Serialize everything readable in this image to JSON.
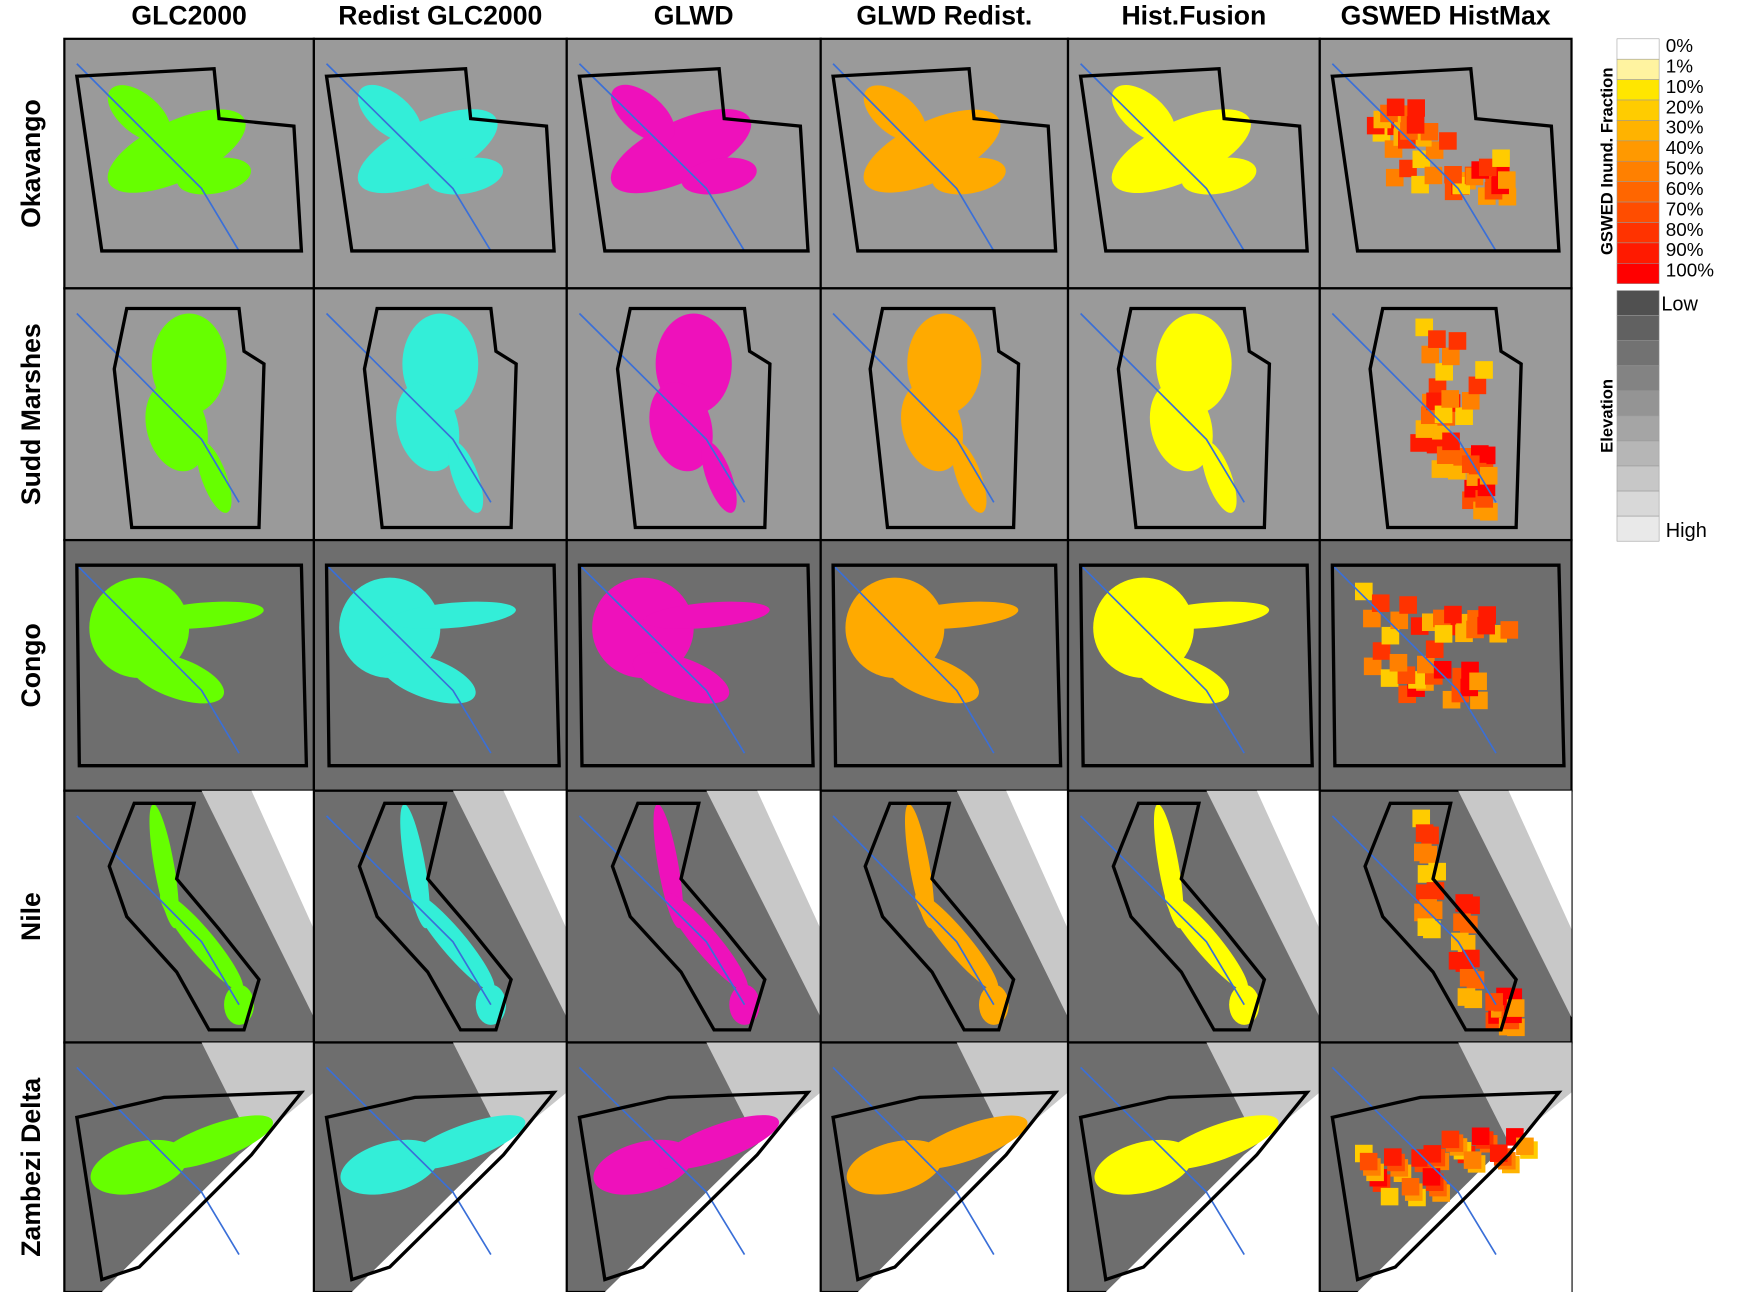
{
  "columns": [
    {
      "title": "GLC2000",
      "color": "#66ff00"
    },
    {
      "title": "Redist GLC2000",
      "color": "#33eed8"
    },
    {
      "title": "GLWD",
      "color": "#ee11bb"
    },
    {
      "title": "GLWD Redist.",
      "color": "#ffaa00"
    },
    {
      "title": "Hist.Fusion",
      "color": "#ffff00"
    },
    {
      "title": "GSWED HistMax",
      "color": "#ff6600"
    }
  ],
  "rows": [
    {
      "label": "Okavango"
    },
    {
      "label": "Sudd Marshes"
    },
    {
      "label": "Congo"
    },
    {
      "label": "Nile"
    },
    {
      "label": "Zambezi Delta"
    }
  ],
  "fraction_legend": {
    "title": "GSWED Inund. Fraction",
    "labels": [
      "0%",
      "1%",
      "10%",
      "20%",
      "30%",
      "40%",
      "50%",
      "60%",
      "70%",
      "80%",
      "90%",
      "100%"
    ],
    "colors": [
      "#ffffff",
      "#fff3a0",
      "#ffe600",
      "#ffcc00",
      "#ffb300",
      "#ff9900",
      "#ff8000",
      "#ff6600",
      "#ff4d00",
      "#ff3300",
      "#ff1a00",
      "#ff0000"
    ]
  },
  "elevation_legend": {
    "title": "Elevation",
    "low": "Low",
    "high": "High"
  }
}
